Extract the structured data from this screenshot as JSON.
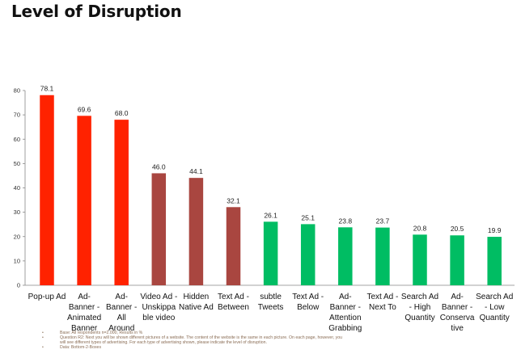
{
  "title": "Level of Disruption",
  "chart_data": {
    "type": "bar",
    "title": "Level of Disruption",
    "xlabel": "",
    "ylabel": "",
    "ylim": [
      0,
      80
    ],
    "yticks": [
      0,
      10,
      20,
      30,
      40,
      50,
      60,
      70,
      80
    ],
    "grid": false,
    "categories": [
      [
        "Pop-up Ad"
      ],
      [
        "Ad-",
        "Banner -",
        "Animated",
        "Banner"
      ],
      [
        "Ad-",
        "Banner -",
        "All",
        "Around"
      ],
      [
        "Video Ad -",
        "Unskippa",
        "ble video"
      ],
      [
        "Hidden",
        "Native Ad"
      ],
      [
        "Text Ad -",
        "Between"
      ],
      [
        "subtle",
        "Tweets"
      ],
      [
        "Text Ad -",
        "Below"
      ],
      [
        "Ad-",
        "Banner -",
        "Attention",
        "Grabbing"
      ],
      [
        "Text Ad -",
        "Next To"
      ],
      [
        "Search Ad",
        "- High",
        "Quantity"
      ],
      [
        "Ad-",
        "Banner -",
        "Conserva",
        "tive"
      ],
      [
        "Search Ad",
        "- Low",
        "Quantity"
      ]
    ],
    "values": [
      78.1,
      69.6,
      68.0,
      46.0,
      44.1,
      32.1,
      26.1,
      25.1,
      23.8,
      23.7,
      20.8,
      20.5,
      19.9
    ],
    "value_labels": [
      "78.1",
      "69.6",
      "68.0",
      "46.0",
      "44.1",
      "32.1",
      "26.1",
      "25.1",
      "23.8",
      "23.7",
      "20.8",
      "20.5",
      "19.9"
    ],
    "colors": [
      "#ff2200",
      "#ff2200",
      "#ff2200",
      "#a94640",
      "#a94640",
      "#a94640",
      "#00bd63",
      "#00bd63",
      "#00bd63",
      "#00bd63",
      "#00bd63",
      "#00bd63",
      "#00bd63"
    ]
  },
  "footnotes": [
    {
      "bullet": "•",
      "text": "Base: All respondents n=2.000, Results in %"
    },
    {
      "bullet": "•",
      "text": "Question R2: Next you will be shown different pictures of a website. The content of the website is the same in each picture. On each page, however, you"
    },
    {
      "bullet": "",
      "text": "will see different types of advertising. For each type of advertising shown, please indicate the level of disruption."
    },
    {
      "bullet": "•",
      "text": "Data: Bottom-2-Boxes"
    }
  ]
}
